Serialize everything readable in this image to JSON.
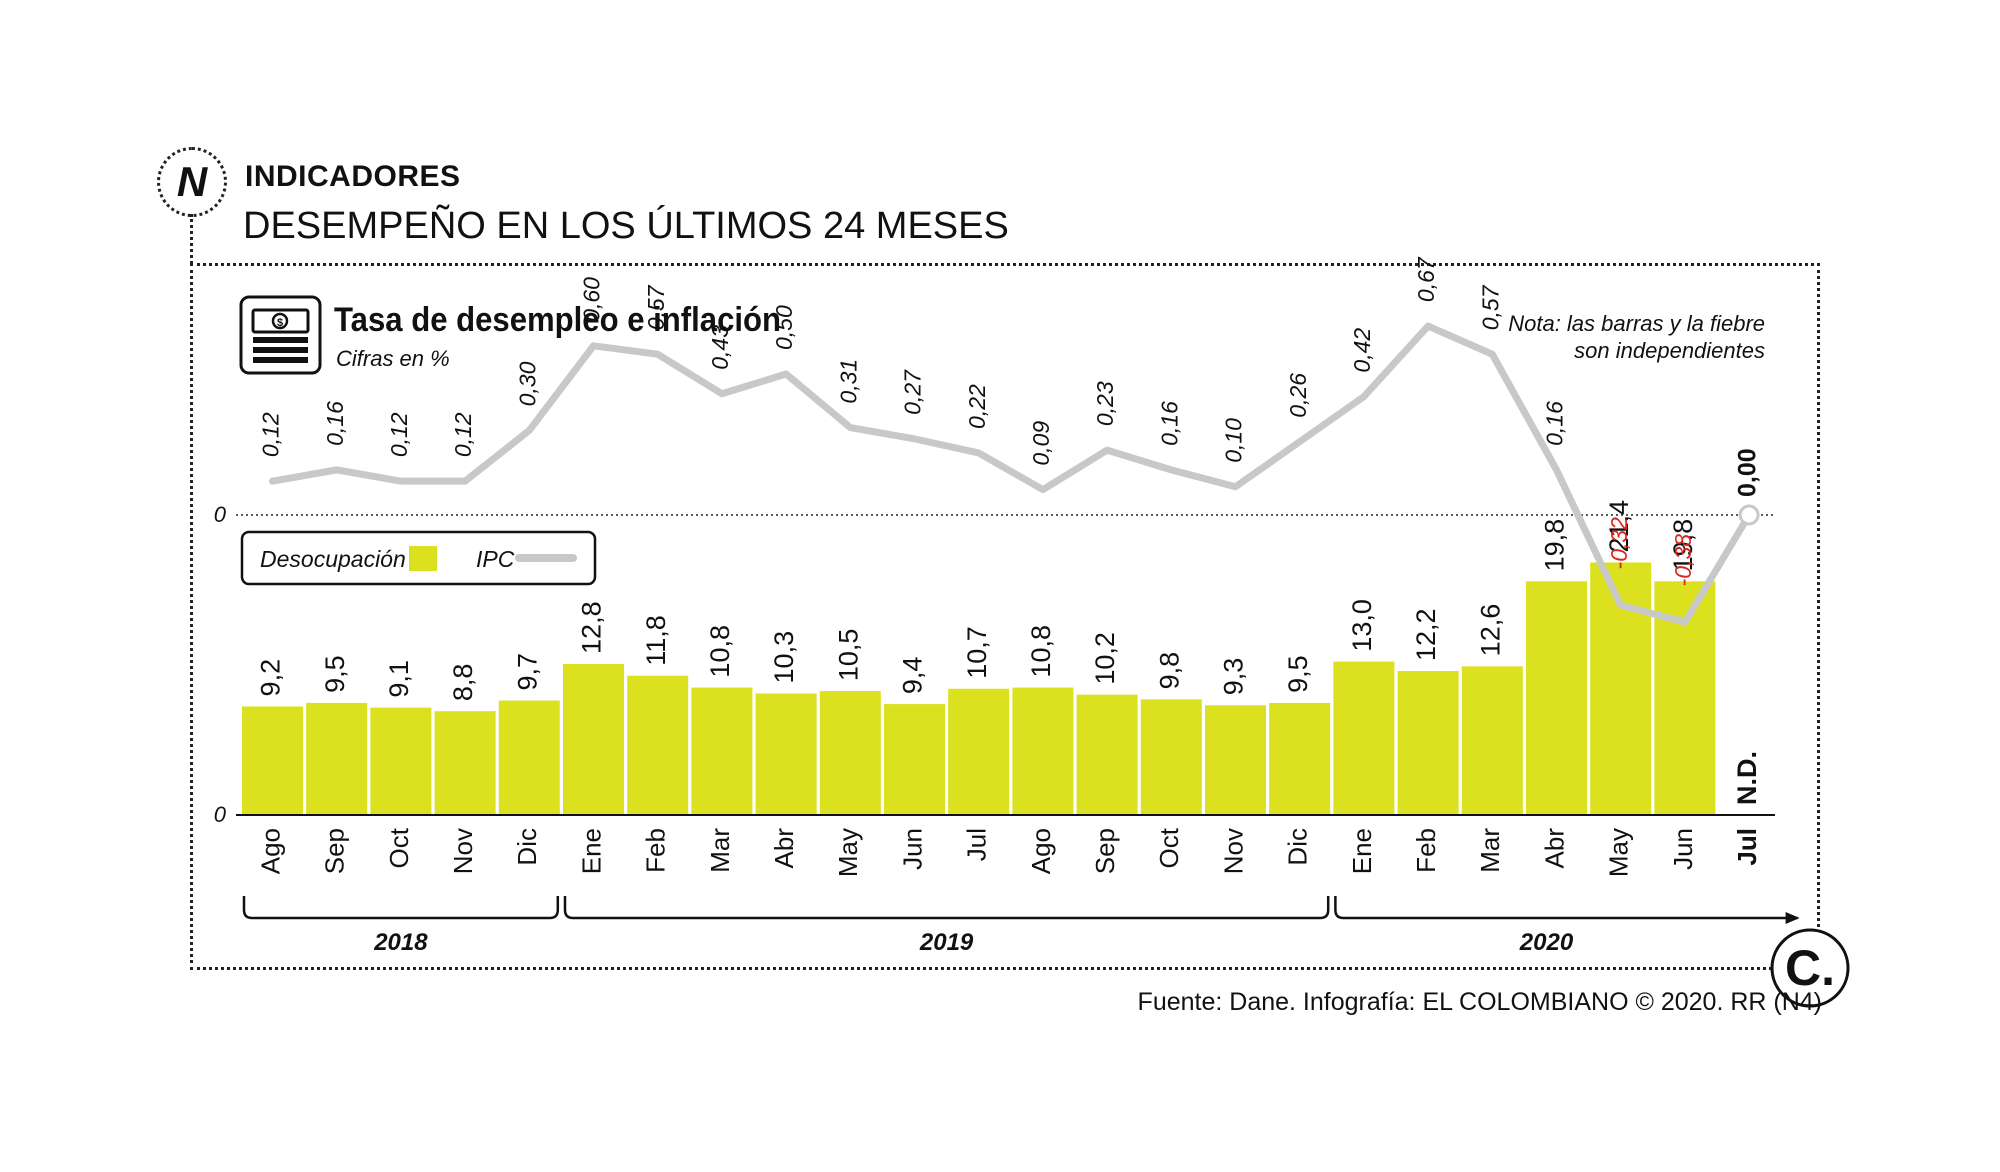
{
  "header": {
    "logo_letter": "N",
    "section": "INDICADORES",
    "headline": "DESEMPEÑO EN LOS ÚLTIMOS 24 MESES"
  },
  "footer": {
    "source": "Fuente: Dane. Infografía: EL COLOMBIANO © 2020. RR (N4)"
  },
  "colors": {
    "bar": "#dbe01f",
    "line": "#c8c8c8",
    "negative": "#d9261c",
    "text": "#111111"
  },
  "chart_data": {
    "type": "bar",
    "title": "Tasa de desempleo e inflación",
    "subtitle": "Cifras en %",
    "note": [
      "Nota: las barras y la fiebre",
      "son independientes"
    ],
    "icon": "money-stack-icon",
    "legend": {
      "position": "top-left",
      "items": [
        {
          "label": "Desocupación",
          "marker": "bar"
        },
        {
          "label": "IPC",
          "marker": "line"
        }
      ]
    },
    "categories": [
      "Ago",
      "Sep",
      "Oct",
      "Nov",
      "Dic",
      "Ene",
      "Feb",
      "Mar",
      "Abr",
      "May",
      "Jun",
      "Jul",
      "Ago",
      "Sep",
      "Oct",
      "Nov",
      "Dic",
      "Ene",
      "Feb",
      "Mar",
      "Abr",
      "May",
      "Jun",
      "Jul"
    ],
    "years": [
      {
        "label": "2018",
        "from": 0,
        "to": 4
      },
      {
        "label": "2019",
        "from": 5,
        "to": 16
      },
      {
        "label": "2020",
        "from": 17,
        "to": 23
      }
    ],
    "series": [
      {
        "name": "Desocupación",
        "type": "bar",
        "values": [
          9.2,
          9.5,
          9.1,
          8.8,
          9.7,
          12.8,
          11.8,
          10.8,
          10.3,
          10.5,
          9.4,
          10.7,
          10.8,
          10.2,
          9.8,
          9.3,
          9.5,
          13.0,
          12.2,
          12.6,
          19.8,
          21.4,
          19.8,
          null
        ],
        "labels": [
          "9,2",
          "9,5",
          "9,1",
          "8,8",
          "9,7",
          "12,8",
          "11,8",
          "10,8",
          "10,3",
          "10,5",
          "9,4",
          "10,7",
          "10,8",
          "10,2",
          "9,8",
          "9,3",
          "9,5",
          "13,0",
          "12,2",
          "12,6",
          "19,8",
          "21,4",
          "19,8",
          "N.D."
        ]
      },
      {
        "name": "IPC",
        "type": "line",
        "values": [
          0.12,
          0.16,
          0.12,
          0.12,
          0.3,
          0.6,
          0.57,
          0.43,
          0.5,
          0.31,
          0.27,
          0.22,
          0.09,
          0.23,
          0.16,
          0.1,
          0.26,
          0.42,
          0.67,
          0.57,
          0.16,
          -0.32,
          -0.38,
          0.0
        ],
        "labels": [
          "0,12",
          "0,16",
          "0,12",
          "0,12",
          "0,30",
          "0,60",
          "0,57",
          "0,43",
          "0,50",
          "0,31",
          "0,27",
          "0,22",
          "0,09",
          "0,23",
          "0,16",
          "0,10",
          "0,26",
          "0,42",
          "0,67",
          "0,57",
          "0,16",
          "-0,32",
          "-0,38",
          "0,00"
        ]
      }
    ],
    "axes": {
      "bar_zero_label": "0",
      "line_zero_label": "0"
    },
    "grid": false
  }
}
